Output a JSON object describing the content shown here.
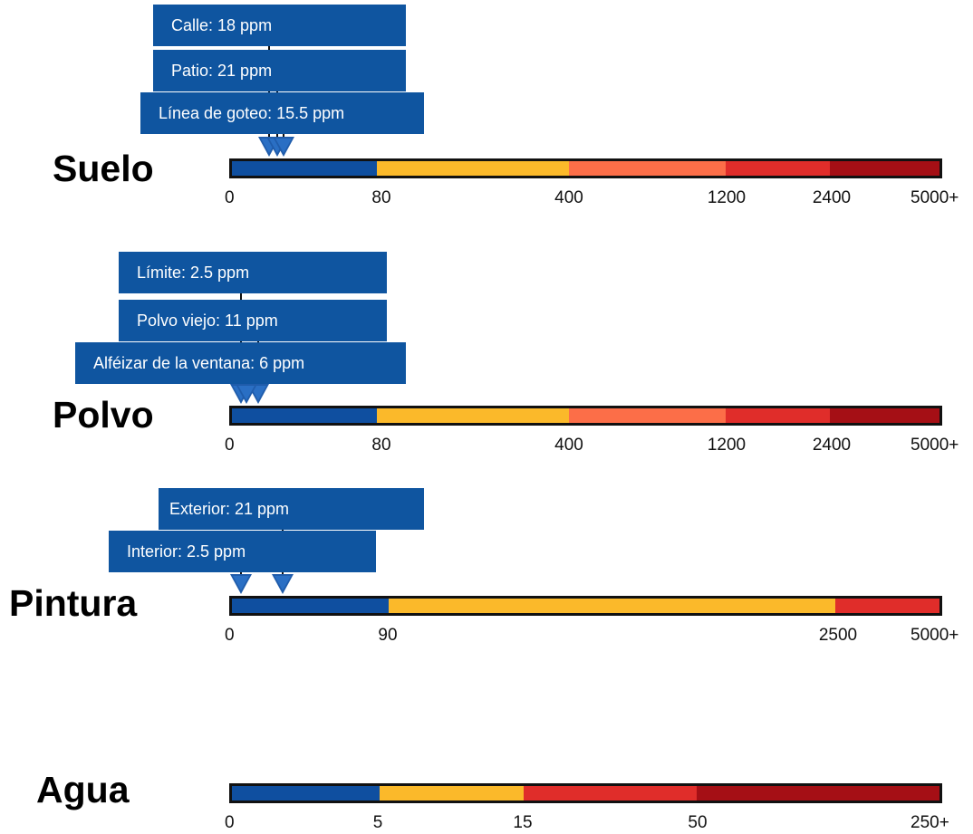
{
  "colors": {
    "blue": "#0f4fa0",
    "yellow": "#fbb92a",
    "orange": "#fc6e48",
    "red": "#e02d2a",
    "darkred": "#a50f15",
    "label_bg": "#0f55a0",
    "arrow": "#1f5cab"
  },
  "chart_data": [
    {
      "type": "bar",
      "title": "Suelo",
      "unit": "ppm",
      "ticks": [
        "0",
        "80",
        "400",
        "1200",
        "2400",
        "5000+"
      ],
      "segments": [
        {
          "from": "0",
          "to": "80",
          "color": "#0f4fa0"
        },
        {
          "from": "80",
          "to": "400",
          "color": "#fbb92a"
        },
        {
          "from": "400",
          "to": "1200",
          "color": "#fc6e48"
        },
        {
          "from": "1200",
          "to": "2400",
          "color": "#e02d2a"
        },
        {
          "from": "2400",
          "to": "5000+",
          "color": "#a50f15"
        }
      ],
      "markers": [
        {
          "label": "Calle: 18 ppm",
          "value": 18
        },
        {
          "label": "Patio: 21 ppm",
          "value": 21
        },
        {
          "label": "Línea de goteo: 15.5 ppm",
          "value": 15.5
        }
      ]
    },
    {
      "type": "bar",
      "title": "Polvo",
      "unit": "ppm",
      "ticks": [
        "0",
        "80",
        "400",
        "1200",
        "2400",
        "5000+"
      ],
      "segments": [
        {
          "from": "0",
          "to": "80",
          "color": "#0f4fa0"
        },
        {
          "from": "80",
          "to": "400",
          "color": "#fbb92a"
        },
        {
          "from": "400",
          "to": "1200",
          "color": "#fc6e48"
        },
        {
          "from": "1200",
          "to": "2400",
          "color": "#e02d2a"
        },
        {
          "from": "2400",
          "to": "5000+",
          "color": "#a50f15"
        }
      ],
      "markers": [
        {
          "label": "Límite: 2.5 ppm",
          "value": 2.5
        },
        {
          "label": "Polvo viejo: 11 ppm",
          "value": 11
        },
        {
          "label": "Alféizar de la ventana: 6 ppm",
          "value": 6
        }
      ]
    },
    {
      "type": "bar",
      "title": "Pintura",
      "unit": "ppm",
      "ticks": [
        "0",
        "90",
        "2500",
        "5000+"
      ],
      "segments": [
        {
          "from": "0",
          "to": "90",
          "color": "#0f4fa0"
        },
        {
          "from": "90",
          "to": "2500",
          "color": "#fbb92a"
        },
        {
          "from": "2500",
          "to": "5000+",
          "color": "#e02d2a"
        }
      ],
      "markers": [
        {
          "label": "Exterior: 21 ppm",
          "value": 21
        },
        {
          "label": "Interior: 2.5 ppm",
          "value": 2.5
        }
      ]
    },
    {
      "type": "bar",
      "title": "Agua",
      "unit": "",
      "ticks": [
        "0",
        "5",
        "15",
        "50",
        "250+"
      ],
      "segments": [
        {
          "from": "0",
          "to": "5",
          "color": "#0f4fa0"
        },
        {
          "from": "5",
          "to": "15",
          "color": "#fbb92a"
        },
        {
          "from": "15",
          "to": "50",
          "color": "#e02d2a"
        },
        {
          "from": "50",
          "to": "250+",
          "color": "#a50f15"
        }
      ],
      "markers": []
    }
  ]
}
